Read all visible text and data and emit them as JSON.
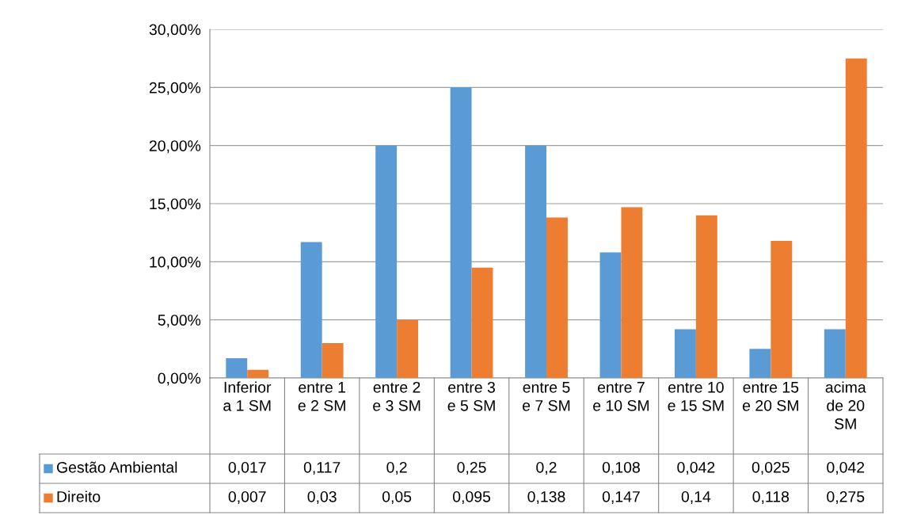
{
  "chart_data": {
    "type": "bar",
    "categories": [
      "Inferior a 1 SM",
      "entre 1 e 2 SM",
      "entre 2 e 3 SM",
      "entre 3 e 5 SM",
      "entre 5 e 7 SM",
      "entre 7 e 10 SM",
      "entre 10 e 15 SM",
      "entre 15 e 20 SM",
      "acima de 20 SM"
    ],
    "series": [
      {
        "name": "Gestão Ambiental",
        "color": "#5b9bd5",
        "values": [
          0.017,
          0.117,
          0.2,
          0.25,
          0.2,
          0.108,
          0.042,
          0.025,
          0.042
        ],
        "value_labels": [
          "0,017",
          "0,117",
          "0,2",
          "0,25",
          "0,2",
          "0,108",
          "0,042",
          "0,025",
          "0,042"
        ]
      },
      {
        "name": "Direito",
        "color": "#ed7d31",
        "values": [
          0.007,
          0.03,
          0.05,
          0.095,
          0.138,
          0.147,
          0.14,
          0.118,
          0.275
        ],
        "value_labels": [
          "0,007",
          "0,03",
          "0,05",
          "0,095",
          "0,138",
          "0,147",
          "0,14",
          "0,118",
          "0,275"
        ]
      }
    ],
    "ylim": [
      0,
      0.3
    ],
    "yticks": [
      {
        "value": 0,
        "label": "0,00%"
      },
      {
        "value": 0.05,
        "label": "5,00%"
      },
      {
        "value": 0.1,
        "label": "10,00%"
      },
      {
        "value": 0.15,
        "label": "15,00%"
      },
      {
        "value": 0.2,
        "label": "20,00%"
      },
      {
        "value": 0.25,
        "label": "25,00%"
      },
      {
        "value": 0.3,
        "label": "30,00%"
      }
    ],
    "grid": "y",
    "legend": "bottom"
  }
}
